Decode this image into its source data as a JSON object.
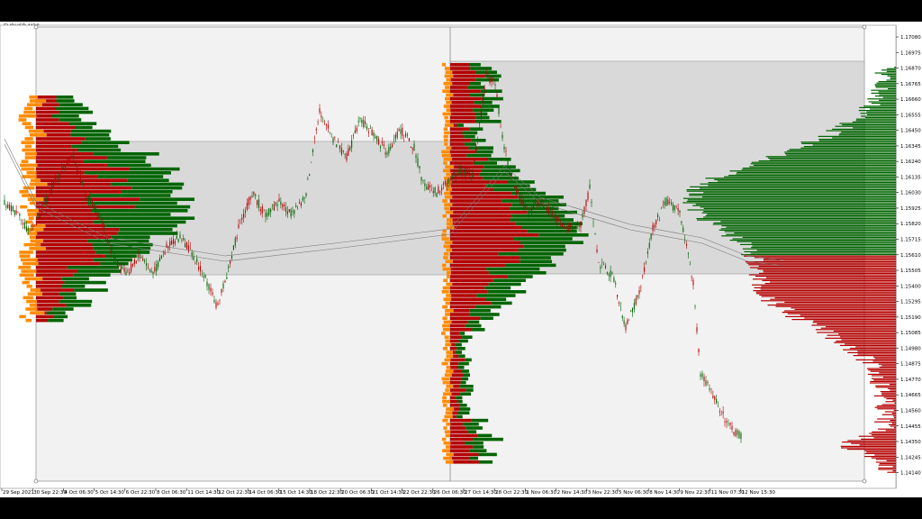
{
  "chart": {
    "symbol_label": "EURUSD,M30",
    "colors": {
      "up": "#006400",
      "down": "#b30000",
      "volume_highlight": "#ff8c00",
      "value_area": "#d9d9d9",
      "plot_bg": "#f2f2f2",
      "grid": "#c8c8c8"
    },
    "price_axis_labels": [
      "1.17080",
      "1.16975",
      "1.16870",
      "1.16765",
      "1.16660",
      "1.16555",
      "1.16450",
      "1.16345",
      "1.16240",
      "1.16135",
      "1.16030",
      "1.15925",
      "1.15820",
      "1.15715",
      "1.15610",
      "1.15505",
      "1.15400",
      "1.15295",
      "1.15190",
      "1.15085",
      "1.14980",
      "1.14875",
      "1.14770",
      "1.14665",
      "1.14560",
      "1.14455",
      "1.14350",
      "1.14245",
      "1.14140"
    ],
    "time_axis_labels": [
      "29 Sep 2021",
      "30 Sep 22:30",
      "4 Oct 06:30",
      "5 Oct 14:30",
      "6 Oct 22:30",
      "8 Oct 06:30",
      "11 Oct 14:30",
      "12 Oct 22:30",
      "14 Oct 06:30",
      "15 Oct 14:30",
      "18 Oct 22:30",
      "20 Oct 06:30",
      "21 Oct 14:30",
      "22 Oct 22:30",
      "26 Oct 06:30",
      "27 Oct 14:30",
      "28 Oct 22:30",
      "1 Nov 06:30",
      "2 Nov 14:30",
      "3 Nov 22:30",
      "5 Nov 06:30",
      "8 Nov 14:30",
      "9 Nov 22:30",
      "11 Nov 07:30",
      "12 Nov 15:30"
    ]
  }
}
